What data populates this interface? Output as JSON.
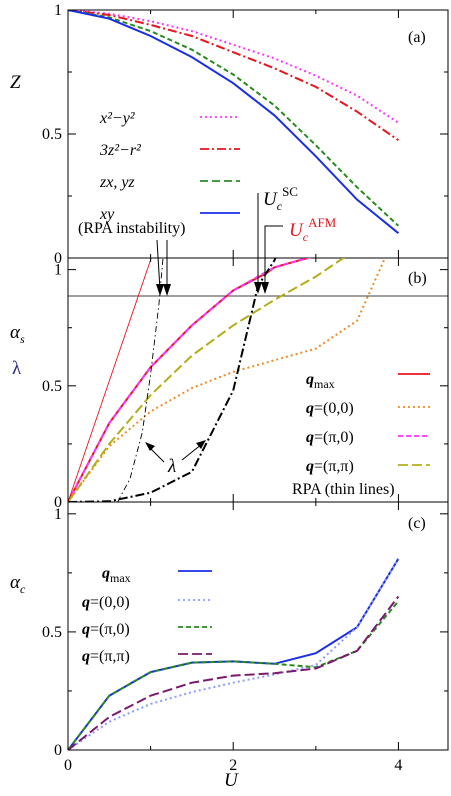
{
  "xaxis": {
    "label": "U",
    "ticks": [
      "0",
      "2",
      "4"
    ],
    "tick_values": [
      0,
      2,
      4
    ],
    "xlim": [
      0,
      4.6
    ]
  },
  "panels": [
    {
      "label": "(a)",
      "ylabel": "Z",
      "ylim": [
        0,
        1
      ],
      "ytick_labels": [
        "0",
        "0.5",
        "1"
      ],
      "ytick_values": [
        0,
        0.5,
        1
      ]
    },
    {
      "label": "(b)",
      "ylabel_main": "α",
      "ylabel_sub": "s",
      "ylabel_second": "λ",
      "ylim": [
        0,
        1.05
      ],
      "ytick_labels": [
        "0",
        "0.5",
        "1"
      ],
      "ytick_values": [
        0,
        0.5,
        1
      ],
      "guide_y": 1.0
    },
    {
      "label": "(c)",
      "ylabel_main": "α",
      "ylabel_sub": "c",
      "ylim": [
        0,
        1.05
      ],
      "ytick_labels": [
        "0",
        "0.5",
        "1"
      ],
      "ytick_values": [
        0,
        0.5,
        1
      ]
    }
  ],
  "chart_data": [
    {
      "type": "line",
      "panel": "(a)",
      "series": [
        {
          "name": "x²−y²",
          "color": "#ff33ff",
          "dash": "dotted",
          "x": [
            0,
            0.5,
            1,
            1.5,
            2,
            2.5,
            3,
            3.5,
            4
          ],
          "y": [
            1.0,
            0.985,
            0.955,
            0.915,
            0.86,
            0.805,
            0.735,
            0.655,
            0.545
          ]
        },
        {
          "name": "3z²−r²",
          "color": "#e8141e",
          "dash": "dashdot",
          "x": [
            0,
            0.5,
            1,
            1.5,
            2,
            2.5,
            3,
            3.5,
            4
          ],
          "y": [
            1.0,
            0.98,
            0.94,
            0.895,
            0.83,
            0.765,
            0.69,
            0.59,
            0.475
          ]
        },
        {
          "name": "zx, yz",
          "color": "#2a8a22",
          "dash": "dashed",
          "x": [
            0,
            0.5,
            1,
            1.5,
            2,
            2.5,
            3,
            3.5,
            4
          ],
          "y": [
            1.0,
            0.97,
            0.915,
            0.84,
            0.74,
            0.615,
            0.455,
            0.285,
            0.13
          ]
        },
        {
          "name": "xy",
          "color": "#1a2ee6",
          "dash": "solid",
          "x": [
            0,
            0.5,
            1,
            1.5,
            2,
            2.5,
            3,
            3.5,
            4
          ],
          "y": [
            1.0,
            0.965,
            0.895,
            0.81,
            0.705,
            0.575,
            0.41,
            0.235,
            0.1
          ]
        }
      ]
    },
    {
      "type": "line",
      "panel": "(b)",
      "series": [
        {
          "name": "q_max",
          "color": "#e8141e",
          "dash": "solid",
          "x": [
            0,
            0.5,
            1,
            1.5,
            2,
            2.4,
            2.5,
            3,
            3.5,
            3.8
          ],
          "y": [
            0,
            0.34,
            0.58,
            0.76,
            0.91,
            0.985,
            1.01,
            1.06,
            1.11,
            1.19
          ]
        },
        {
          "name": "q=(0,0)",
          "color": "#f08a22",
          "dash": "dotted",
          "x": [
            0,
            0.5,
            1,
            1.5,
            2,
            2.5,
            3,
            3.5,
            4
          ],
          "y": [
            0,
            0.24,
            0.39,
            0.49,
            0.56,
            0.61,
            0.66,
            0.78,
            1.18
          ]
        },
        {
          "name": "q=(π,0)",
          "color": "#ff33ff",
          "dash": "dashed",
          "x": [
            0,
            0.5,
            1,
            1.5,
            2,
            2.5,
            3,
            3.5,
            3.8
          ],
          "y": [
            0,
            0.34,
            0.58,
            0.76,
            0.91,
            1.01,
            1.06,
            1.11,
            1.19
          ]
        },
        {
          "name": "q=(π,π)",
          "color": "#b3ad1a",
          "dash": "longdash",
          "x": [
            0,
            0.5,
            1,
            1.5,
            2,
            2.5,
            3,
            3.5,
            4
          ],
          "y": [
            0,
            0.25,
            0.46,
            0.63,
            0.76,
            0.87,
            0.97,
            1.09,
            1.18
          ]
        },
        {
          "name": "λ",
          "color": "#000000",
          "dash": "dashdot",
          "x": [
            0,
            0.5,
            1,
            1.5,
            2,
            2.3,
            2.5,
            3
          ],
          "y": [
            0,
            0.003,
            0.04,
            0.13,
            0.48,
            0.93,
            1.04,
            1.5
          ]
        },
        {
          "name": "RPA α_s",
          "color": "#e8141e",
          "dash": "solid",
          "thin": true,
          "x": [
            0,
            1.2
          ],
          "y": [
            0,
            1.25
          ]
        },
        {
          "name": "RPA λ",
          "color": "#000000",
          "dash": "dashdot",
          "thin": true,
          "x": [
            0.6,
            0.75,
            0.9,
            1.0,
            1.1,
            1.2
          ],
          "y": [
            0.0,
            0.1,
            0.3,
            0.55,
            0.85,
            1.25
          ]
        }
      ],
      "legend": {
        "position": "bottom-right",
        "entries": [
          "q_max",
          "q=(0,0)",
          "q=(π,0)",
          "q=(π,π)"
        ],
        "note": "RPA (thin lines)"
      },
      "annotations": [
        {
          "text": "(RPA instability)",
          "x": 1.2
        },
        {
          "text": "U_c^SC",
          "x": 2.4
        },
        {
          "text": "U_c^AFM",
          "x": 2.4
        },
        {
          "text": "λ",
          "x": 1.45
        }
      ]
    },
    {
      "type": "line",
      "panel": "(c)",
      "series": [
        {
          "name": "q_max",
          "color": "#1a2ee6",
          "dash": "solid",
          "x": [
            0,
            0.5,
            1,
            1.5,
            2,
            2.5,
            3,
            3.5,
            4
          ],
          "y": [
            0,
            0.23,
            0.33,
            0.37,
            0.375,
            0.365,
            0.41,
            0.52,
            0.81
          ]
        },
        {
          "name": "q=(0,0)",
          "color": "#8c9aff",
          "dash": "dotted",
          "x": [
            0,
            0.5,
            1,
            1.5,
            2,
            2.5,
            3,
            3.5,
            4
          ],
          "y": [
            0,
            0.12,
            0.195,
            0.245,
            0.285,
            0.32,
            0.36,
            0.52,
            0.81
          ]
        },
        {
          "name": "q=(π,0)",
          "color": "#2a8a22",
          "dash": "dashed",
          "x": [
            0,
            0.5,
            1,
            1.5,
            2,
            2.5,
            3,
            3.5,
            4
          ],
          "y": [
            0,
            0.23,
            0.33,
            0.37,
            0.375,
            0.365,
            0.35,
            0.42,
            0.63
          ]
        },
        {
          "name": "q=(π,π)",
          "color": "#7a1a6e",
          "dash": "longdash",
          "x": [
            0,
            0.5,
            1,
            1.5,
            2,
            2.5,
            3,
            3.5,
            4
          ],
          "y": [
            0,
            0.14,
            0.23,
            0.285,
            0.315,
            0.325,
            0.345,
            0.42,
            0.65
          ]
        }
      ],
      "legend": {
        "position": "top-left",
        "entries": [
          "q_max",
          "q=(0,0)",
          "q=(π,0)",
          "q=(π,π)"
        ]
      }
    }
  ],
  "legend_labels": {
    "a": [
      "x²−y²",
      "3z²−r²",
      "zx, yz",
      "xy"
    ],
    "b_q": [
      "max",
      "=(0,0)",
      "=(π,0)",
      "=(π,π)"
    ],
    "b_note": "RPA (thin lines)",
    "c_q": [
      "max",
      "=(0,0)",
      "=(π,0)",
      "=(π,π)"
    ]
  },
  "annotation_text": {
    "rpa": "(RPA instability)",
    "ucsc_main": "U",
    "ucsc_sub": "c",
    "ucsc_sup": "SC",
    "ucafm_main": "U",
    "ucafm_sub": "c",
    "ucafm_sup": "AFM",
    "lambda": "λ",
    "q_symbol": "q",
    "afm_color": "#e8141e"
  }
}
